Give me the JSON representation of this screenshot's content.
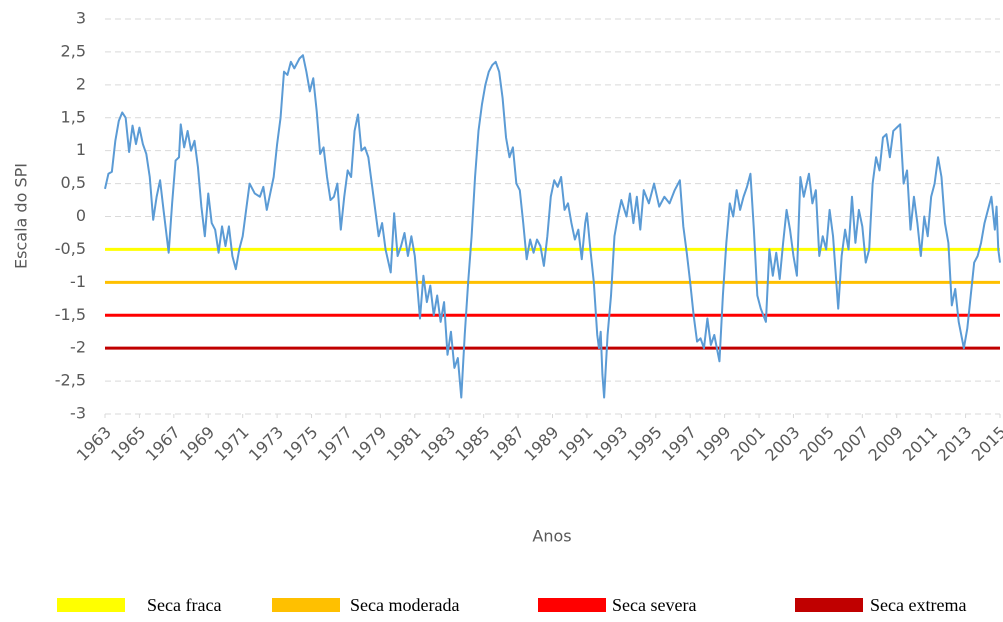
{
  "chart_data": {
    "type": "line",
    "y_label": "Escala do SPI",
    "x_label": "Anos",
    "xlim": [
      1963,
      2015
    ],
    "xticks": [
      1963,
      1965,
      1967,
      1969,
      1971,
      1973,
      1975,
      1977,
      1979,
      1981,
      1983,
      1985,
      1987,
      1989,
      1991,
      1993,
      1995,
      1997,
      1999,
      2001,
      2003,
      2005,
      2007,
      2009,
      2011,
      2013,
      2015
    ],
    "ylim": [
      -3,
      3
    ],
    "yticks": [
      {
        "value": -3,
        "label": "-3"
      },
      {
        "value": -2.5,
        "label": "-2,5"
      },
      {
        "value": -2,
        "label": "-2"
      },
      {
        "value": -1.5,
        "label": "-1,5"
      },
      {
        "value": -1,
        "label": "-1"
      },
      {
        "value": -0.5,
        "label": "-0,5"
      },
      0,
      {
        "value": 0.5,
        "label": "0,5"
      },
      1,
      {
        "value": 1.5,
        "label": "1,5"
      },
      2,
      {
        "value": 2.5,
        "label": "2,5"
      },
      3
    ],
    "grid": true,
    "legend": "bottom",
    "x": [
      1963.0,
      1963.2,
      1963.4,
      1963.6,
      1963.8,
      1964.0,
      1964.2,
      1964.4,
      1964.6,
      1964.8,
      1965.0,
      1965.2,
      1965.4,
      1965.6,
      1965.8,
      1966.0,
      1966.2,
      1966.4,
      1966.7,
      1966.9,
      1967.1,
      1967.3,
      1967.4,
      1967.6,
      1967.8,
      1968.0,
      1968.2,
      1968.4,
      1968.6,
      1968.8,
      1969.0,
      1969.2,
      1969.4,
      1969.6,
      1969.8,
      1970.0,
      1970.2,
      1970.4,
      1970.6,
      1970.8,
      1971.0,
      1971.2,
      1971.4,
      1971.7,
      1972.0,
      1972.2,
      1972.4,
      1972.6,
      1972.8,
      1973.0,
      1973.2,
      1973.4,
      1973.6,
      1973.8,
      1974.0,
      1974.3,
      1974.5,
      1974.7,
      1974.9,
      1975.1,
      1975.3,
      1975.5,
      1975.7,
      1975.9,
      1976.1,
      1976.3,
      1976.5,
      1976.7,
      1976.9,
      1977.1,
      1977.3,
      1977.5,
      1977.7,
      1977.9,
      1978.1,
      1978.3,
      1978.5,
      1978.7,
      1978.9,
      1979.1,
      1979.3,
      1979.6,
      1979.8,
      1980.0,
      1980.2,
      1980.4,
      1980.6,
      1980.8,
      1981.0,
      1981.3,
      1981.5,
      1981.7,
      1981.9,
      1982.1,
      1982.3,
      1982.5,
      1982.7,
      1982.9,
      1983.1,
      1983.3,
      1983.5,
      1983.7,
      1983.9,
      1984.1,
      1984.3,
      1984.5,
      1984.7,
      1984.9,
      1985.1,
      1985.3,
      1985.5,
      1985.7,
      1985.9,
      1986.1,
      1986.3,
      1986.5,
      1986.7,
      1986.9,
      1987.1,
      1987.3,
      1987.5,
      1987.7,
      1987.9,
      1988.1,
      1988.3,
      1988.5,
      1988.7,
      1988.9,
      1989.1,
      1989.3,
      1989.5,
      1989.7,
      1989.9,
      1990.1,
      1990.3,
      1990.5,
      1990.7,
      1990.9,
      1991.0,
      1991.2,
      1991.4,
      1991.6,
      1991.7,
      1991.8,
      1991.9,
      1992.0,
      1992.2,
      1992.4,
      1992.6,
      1992.8,
      1993.0,
      1993.3,
      1993.5,
      1993.7,
      1993.9,
      1994.1,
      1994.3,
      1994.6,
      1994.9,
      1995.2,
      1995.5,
      1995.8,
      1996.1,
      1996.4,
      1996.6,
      1996.8,
      1997.0,
      1997.2,
      1997.4,
      1997.6,
      1997.8,
      1998.0,
      1998.2,
      1998.4,
      1998.7,
      1998.9,
      1999.1,
      1999.3,
      1999.5,
      1999.7,
      1999.9,
      2000.1,
      2000.3,
      2000.5,
      2000.7,
      2000.9,
      2001.1,
      2001.4,
      2001.6,
      2001.8,
      2002.0,
      2002.2,
      2002.4,
      2002.6,
      2002.8,
      2003.0,
      2003.2,
      2003.4,
      2003.6,
      2003.9,
      2004.1,
      2004.3,
      2004.5,
      2004.7,
      2004.9,
      2005.1,
      2005.3,
      2005.6,
      2005.8,
      2006.0,
      2006.2,
      2006.4,
      2006.6,
      2006.8,
      2007.0,
      2007.2,
      2007.4,
      2007.6,
      2007.8,
      2008.0,
      2008.2,
      2008.4,
      2008.6,
      2008.8,
      2009.0,
      2009.2,
      2009.4,
      2009.6,
      2009.8,
      2010.0,
      2010.2,
      2010.4,
      2010.6,
      2010.8,
      2011.0,
      2011.2,
      2011.4,
      2011.6,
      2011.8,
      2012.0,
      2012.2,
      2012.4,
      2012.6,
      2012.9,
      2013.1,
      2013.3,
      2013.5,
      2013.7,
      2013.9,
      2014.1,
      2014.3,
      2014.5,
      2014.7,
      2014.8,
      2014.9,
      2015.0
    ],
    "series": [
      {
        "color": "#5b9bd5",
        "values": [
          0.42,
          0.65,
          0.68,
          1.15,
          1.45,
          1.58,
          1.5,
          0.98,
          1.38,
          1.1,
          1.35,
          1.1,
          0.95,
          0.6,
          -0.05,
          0.3,
          0.55,
          0.1,
          -0.55,
          0.2,
          0.85,
          0.9,
          1.4,
          1.05,
          1.3,
          1.0,
          1.15,
          0.75,
          0.15,
          -0.3,
          0.35,
          -0.1,
          -0.2,
          -0.55,
          -0.15,
          -0.45,
          -0.15,
          -0.6,
          -0.8,
          -0.5,
          -0.3,
          0.1,
          0.5,
          0.35,
          0.3,
          0.45,
          0.1,
          0.35,
          0.6,
          1.1,
          1.5,
          2.2,
          2.15,
          2.35,
          2.25,
          2.4,
          2.45,
          2.2,
          1.9,
          2.1,
          1.6,
          0.95,
          1.05,
          0.6,
          0.25,
          0.3,
          0.5,
          -0.2,
          0.3,
          0.7,
          0.6,
          1.3,
          1.55,
          1.0,
          1.05,
          0.9,
          0.5,
          0.1,
          -0.3,
          -0.1,
          -0.5,
          -0.85,
          0.05,
          -0.6,
          -0.45,
          -0.25,
          -0.6,
          -0.3,
          -0.6,
          -1.55,
          -0.9,
          -1.3,
          -1.05,
          -1.5,
          -1.2,
          -1.6,
          -1.3,
          -2.1,
          -1.75,
          -2.3,
          -2.15,
          -2.75,
          -1.8,
          -1.0,
          -0.3,
          0.6,
          1.3,
          1.7,
          2.0,
          2.2,
          2.3,
          2.35,
          2.2,
          1.8,
          1.2,
          0.9,
          1.05,
          0.5,
          0.4,
          -0.1,
          -0.65,
          -0.35,
          -0.55,
          -0.35,
          -0.45,
          -0.75,
          -0.3,
          0.3,
          0.55,
          0.45,
          0.6,
          0.1,
          0.2,
          -0.1,
          -0.35,
          -0.2,
          -0.65,
          -0.1,
          0.05,
          -0.5,
          -1.0,
          -1.8,
          -2.0,
          -1.75,
          -2.4,
          -2.75,
          -1.8,
          -1.2,
          -0.3,
          0.0,
          0.25,
          0.0,
          0.35,
          -0.1,
          0.3,
          -0.2,
          0.4,
          0.2,
          0.5,
          0.15,
          0.3,
          0.2,
          0.4,
          0.55,
          -0.15,
          -0.55,
          -1.0,
          -1.5,
          -1.9,
          -1.85,
          -2.0,
          -1.55,
          -1.95,
          -1.8,
          -2.2,
          -1.2,
          -0.4,
          0.2,
          0.0,
          0.4,
          0.1,
          0.3,
          0.45,
          0.65,
          -0.2,
          -1.2,
          -1.4,
          -1.6,
          -0.5,
          -0.9,
          -0.55,
          -0.95,
          -0.4,
          0.1,
          -0.2,
          -0.6,
          -0.9,
          0.6,
          0.3,
          0.65,
          0.2,
          0.4,
          -0.6,
          -0.3,
          -0.5,
          0.1,
          -0.3,
          -1.4,
          -0.6,
          -0.2,
          -0.5,
          0.3,
          -0.4,
          0.1,
          -0.15,
          -0.7,
          -0.5,
          0.5,
          0.9,
          0.7,
          1.2,
          1.25,
          0.9,
          1.3,
          1.35,
          1.4,
          0.5,
          0.7,
          -0.2,
          0.3,
          -0.1,
          -0.6,
          0.0,
          -0.3,
          0.3,
          0.5,
          0.9,
          0.6,
          -0.1,
          -0.4,
          -1.35,
          -1.1,
          -1.6,
          -2.0,
          -1.7,
          -1.2,
          -0.7,
          -0.6,
          -0.4,
          -0.1,
          0.1,
          0.3,
          -0.2,
          0.15,
          -0.5,
          -0.7
        ]
      }
    ],
    "thresholds": [
      {
        "name": "Seca fraca",
        "color": "#ffff00",
        "value": -0.5
      },
      {
        "name": "Seca moderada",
        "color": "#ffc000",
        "value": -1
      },
      {
        "name": "Seca severa",
        "color": "#ff0000",
        "value": -1.5
      },
      {
        "name": "Seca extrema",
        "color": "#c00000",
        "value": -2
      }
    ]
  }
}
